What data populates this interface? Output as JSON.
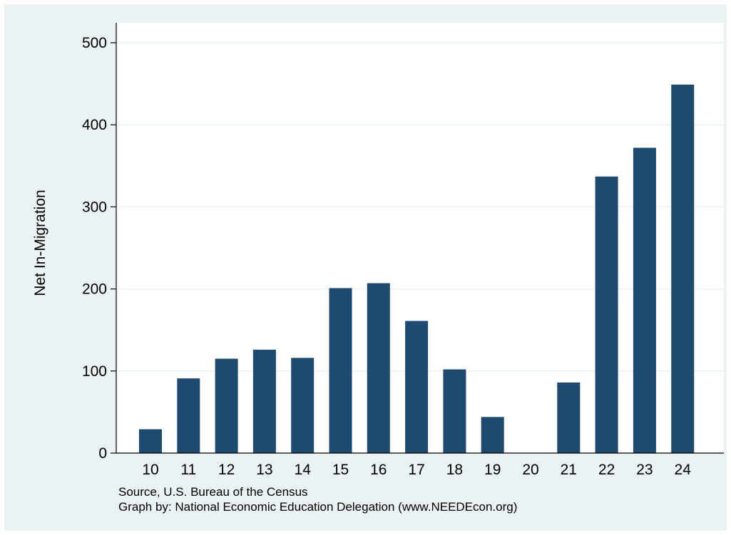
{
  "chart_data": {
    "type": "bar",
    "categories": [
      "10",
      "11",
      "12",
      "13",
      "14",
      "15",
      "16",
      "17",
      "18",
      "19",
      "20",
      "21",
      "22",
      "23",
      "24"
    ],
    "values": [
      29,
      91,
      115,
      126,
      116,
      201,
      207,
      161,
      102,
      44,
      0,
      86,
      337,
      372,
      449
    ],
    "ylabel": "Net In-Migration",
    "xlabel": "",
    "ylim": [
      0,
      520
    ],
    "yticks": [
      0,
      100,
      200,
      300,
      400,
      500
    ],
    "grid": true,
    "legend": "none"
  },
  "notes": {
    "source": "Source, U.S. Bureau of the Census",
    "credit": "Graph by: National Economic Education Delegation (www.NEEDEcon.org)"
  },
  "colors": {
    "bar": "#1f4a6f",
    "plot_background": "#ffffff",
    "outer_background": "#eaf2f3",
    "gridline": "#eaf2f3",
    "axis": "#000000"
  }
}
